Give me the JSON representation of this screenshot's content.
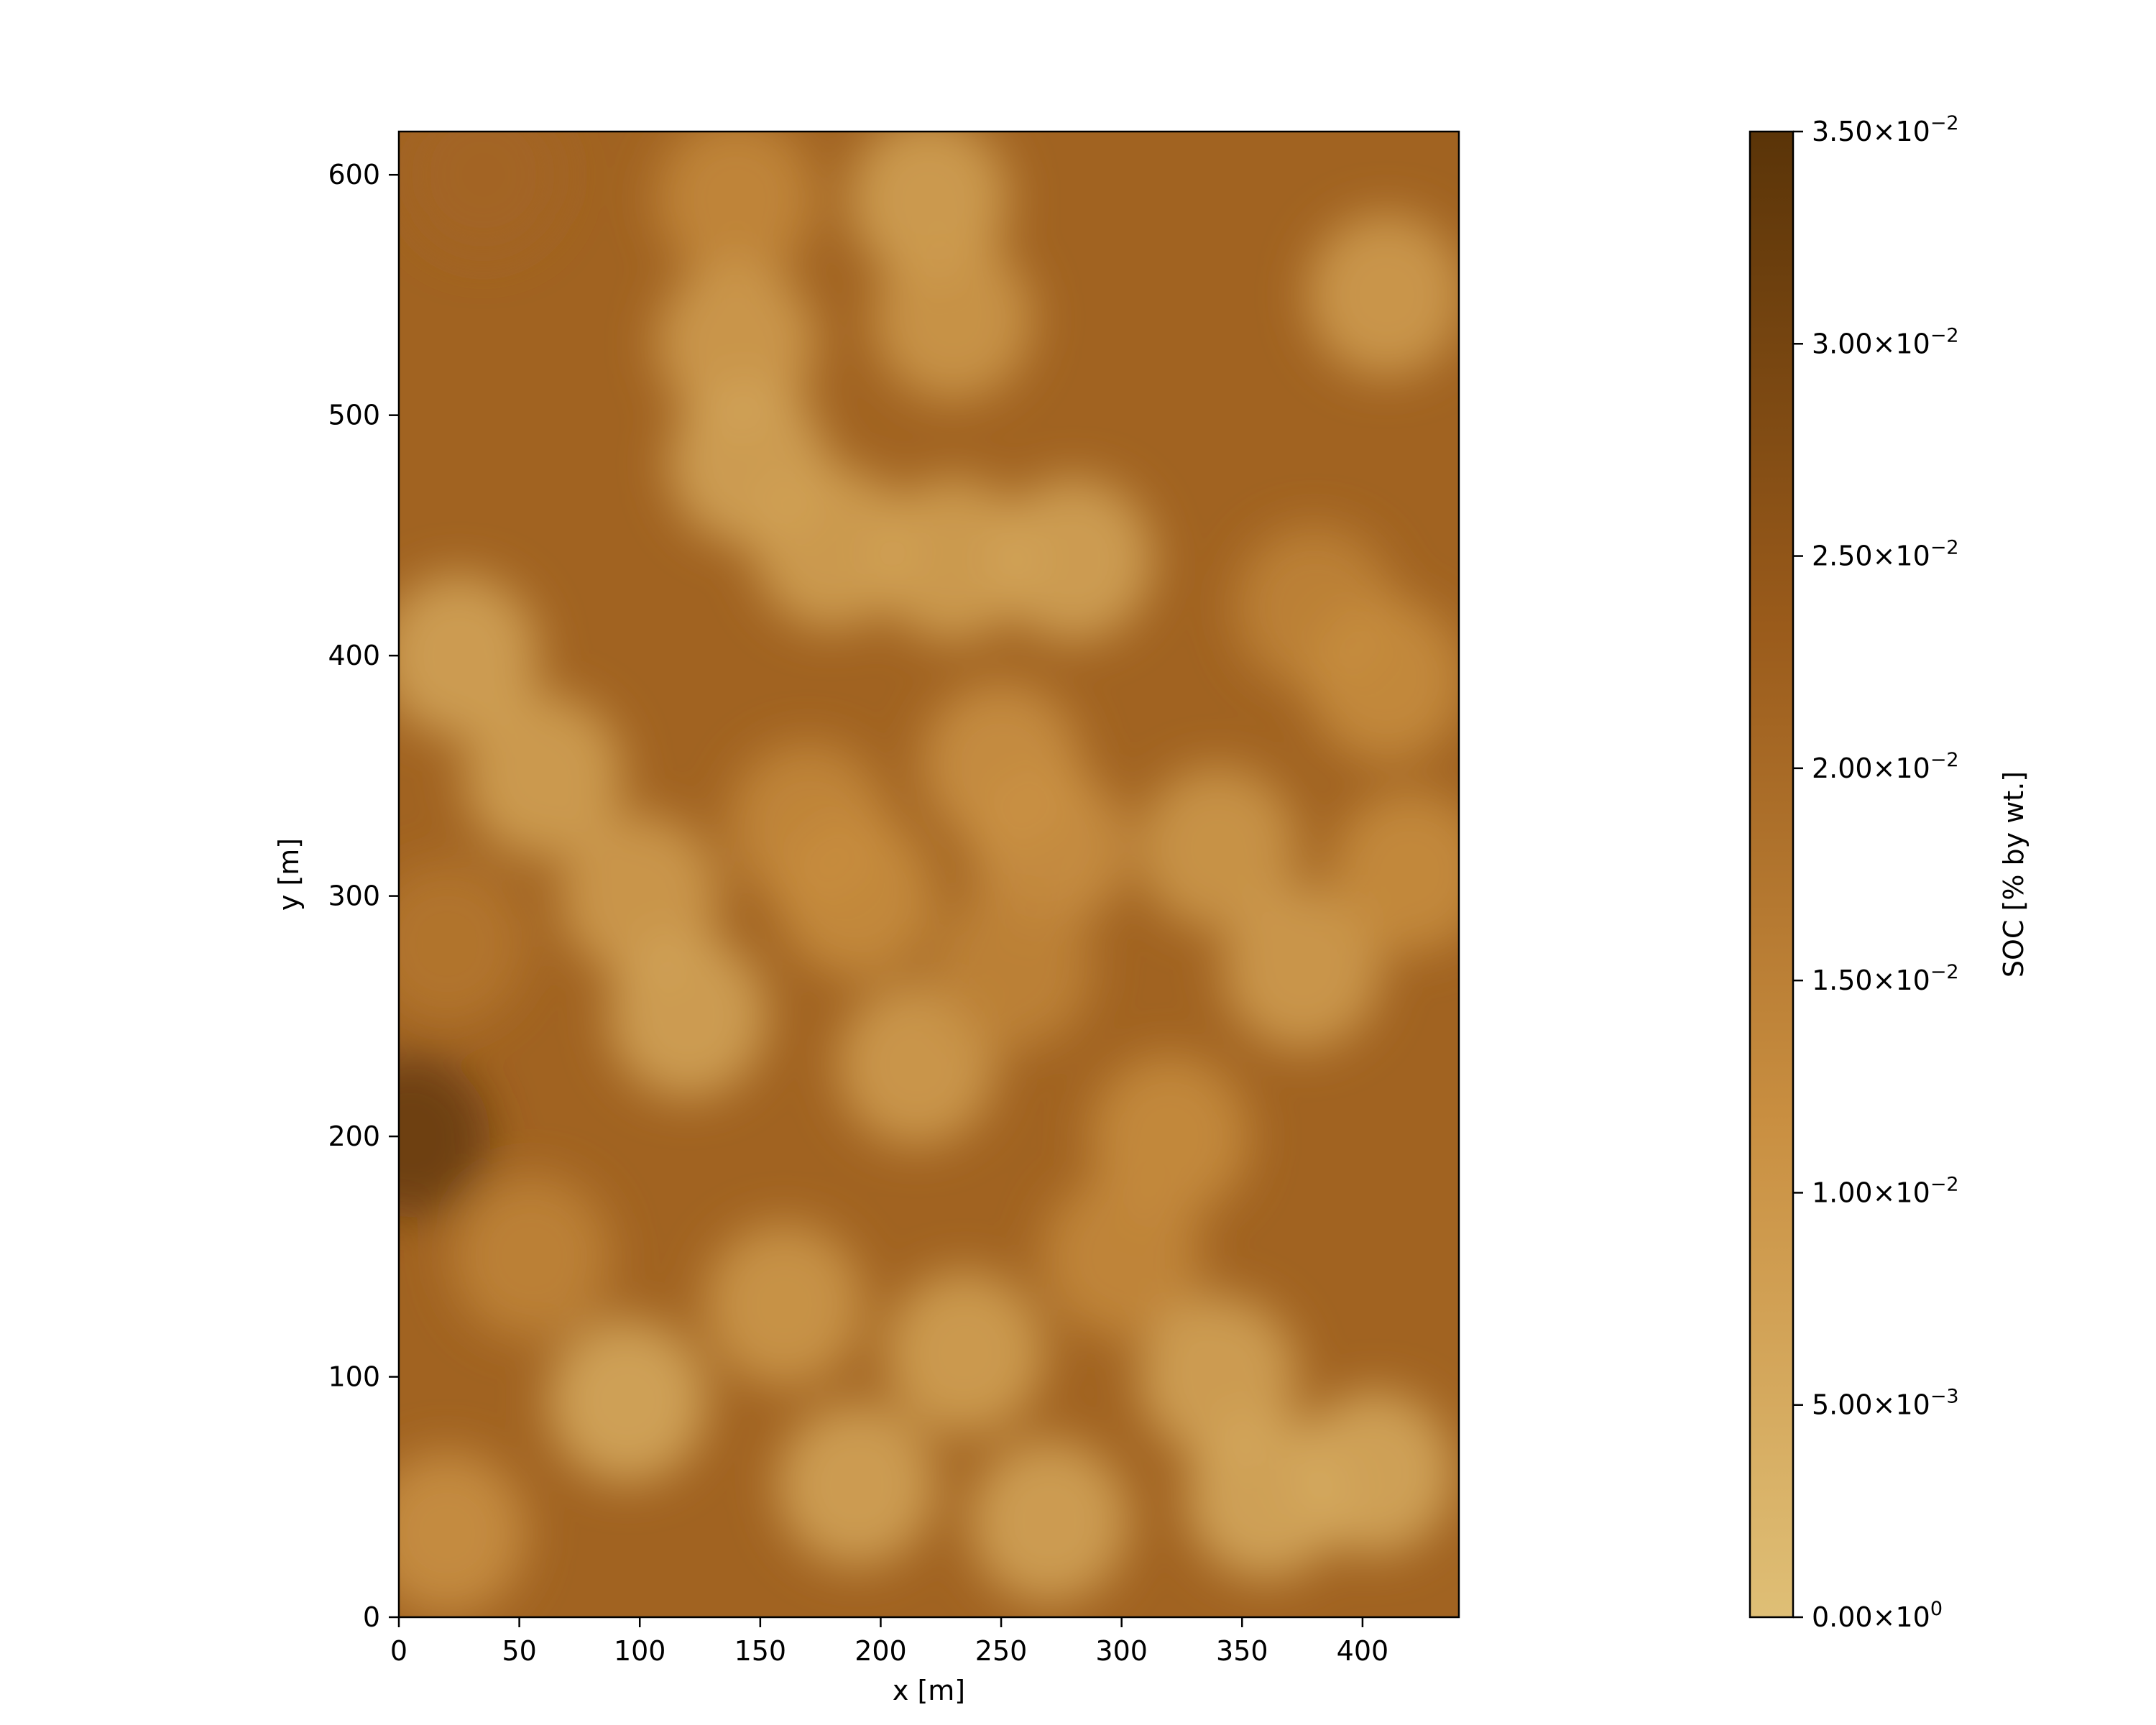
{
  "chart_data": {
    "type": "heatmap",
    "title": "",
    "xlabel": "x [m]",
    "ylabel": "y [m]",
    "xlim": [
      0,
      440
    ],
    "ylim": [
      0,
      618
    ],
    "x_ticks": [
      0,
      50,
      100,
      150,
      200,
      250,
      300,
      350,
      400
    ],
    "y_ticks": [
      0,
      100,
      200,
      300,
      400,
      500,
      600
    ],
    "grid": false,
    "colorbar": {
      "label": "SOC [% by wt.]",
      "range": [
        0,
        0.035
      ],
      "colors": [
        "#dfbf76",
        "#c98f41",
        "#9a5b1b",
        "#5a3408"
      ],
      "ticks": [
        {
          "value": 0.0,
          "mant": "0.00",
          "exp": "0"
        },
        {
          "value": 0.005,
          "mant": "5.00",
          "exp": "−3"
        },
        {
          "value": 0.01,
          "mant": "1.00",
          "exp": "−2"
        },
        {
          "value": 0.015,
          "mant": "1.50",
          "exp": "−2"
        },
        {
          "value": 0.02,
          "mant": "2.00",
          "exp": "−2"
        },
        {
          "value": 0.025,
          "mant": "2.50",
          "exp": "−2"
        },
        {
          "value": 0.03,
          "mant": "3.00",
          "exp": "−2"
        },
        {
          "value": 0.035,
          "mant": "3.50",
          "exp": "−2"
        }
      ]
    },
    "background_value": 0.0215,
    "blobs": [
      {
        "x": 35,
        "y": 600,
        "v": 0.021
      },
      {
        "x": 140,
        "y": 590,
        "v": 0.013
      },
      {
        "x": 220,
        "y": 590,
        "v": 0.007
      },
      {
        "x": 230,
        "y": 540,
        "v": 0.009
      },
      {
        "x": 140,
        "y": 530,
        "v": 0.008
      },
      {
        "x": 145,
        "y": 480,
        "v": 0.006
      },
      {
        "x": 180,
        "y": 445,
        "v": 0.007
      },
      {
        "x": 230,
        "y": 440,
        "v": 0.007
      },
      {
        "x": 280,
        "y": 440,
        "v": 0.006
      },
      {
        "x": 410,
        "y": 550,
        "v": 0.008
      },
      {
        "x": 380,
        "y": 420,
        "v": 0.014
      },
      {
        "x": 410,
        "y": 390,
        "v": 0.012
      },
      {
        "x": 25,
        "y": 400,
        "v": 0.006
      },
      {
        "x": 60,
        "y": 350,
        "v": 0.007
      },
      {
        "x": 100,
        "y": 300,
        "v": 0.008
      },
      {
        "x": 120,
        "y": 250,
        "v": 0.006
      },
      {
        "x": 170,
        "y": 330,
        "v": 0.013
      },
      {
        "x": 190,
        "y": 300,
        "v": 0.012
      },
      {
        "x": 250,
        "y": 355,
        "v": 0.011
      },
      {
        "x": 270,
        "y": 320,
        "v": 0.011
      },
      {
        "x": 340,
        "y": 320,
        "v": 0.009
      },
      {
        "x": 375,
        "y": 270,
        "v": 0.008
      },
      {
        "x": 420,
        "y": 310,
        "v": 0.012
      },
      {
        "x": 215,
        "y": 230,
        "v": 0.008
      },
      {
        "x": 255,
        "y": 270,
        "v": 0.014
      },
      {
        "x": 320,
        "y": 200,
        "v": 0.012
      },
      {
        "x": 300,
        "y": 150,
        "v": 0.013
      },
      {
        "x": 55,
        "y": 150,
        "v": 0.014
      },
      {
        "x": 95,
        "y": 90,
        "v": 0.005
      },
      {
        "x": 160,
        "y": 130,
        "v": 0.009
      },
      {
        "x": 190,
        "y": 55,
        "v": 0.006
      },
      {
        "x": 235,
        "y": 110,
        "v": 0.007
      },
      {
        "x": 270,
        "y": 40,
        "v": 0.006
      },
      {
        "x": 340,
        "y": 100,
        "v": 0.006
      },
      {
        "x": 360,
        "y": 50,
        "v": 0.005
      },
      {
        "x": 405,
        "y": 60,
        "v": 0.005
      },
      {
        "x": 20,
        "y": 35,
        "v": 0.011
      },
      {
        "x": 20,
        "y": 280,
        "v": 0.017
      },
      {
        "x": 5,
        "y": 200,
        "v": 0.033
      }
    ]
  }
}
